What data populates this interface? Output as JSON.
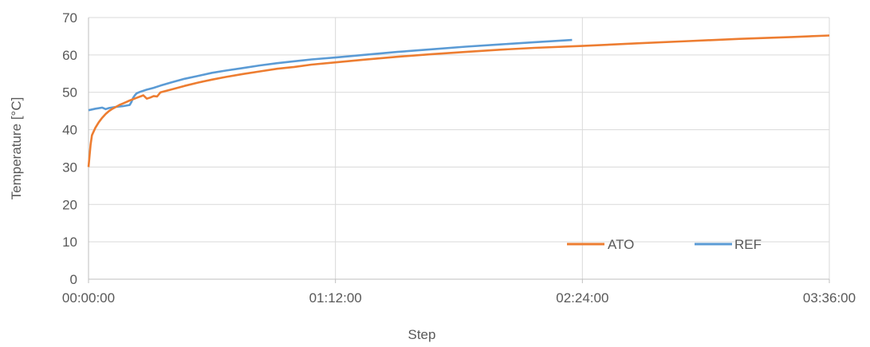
{
  "chart_data": {
    "type": "line",
    "title": "",
    "xlabel": "Step",
    "ylabel": "Temperature [°C]",
    "x_unit": "minutes",
    "xlim": [
      0,
      216
    ],
    "ylim": [
      0,
      70
    ],
    "y_ticks": [
      0,
      10,
      20,
      30,
      40,
      50,
      60,
      70
    ],
    "x_ticks": [
      {
        "value": 0,
        "label": "00:00:00"
      },
      {
        "value": 72,
        "label": "01:12:00"
      },
      {
        "value": 144,
        "label": "02:24:00"
      },
      {
        "value": 216,
        "label": "03:36:00"
      }
    ],
    "grid": true,
    "legend_position": "bottom-right",
    "series": [
      {
        "name": "ATO",
        "color": "#ED7D31",
        "points": [
          [
            0,
            30
          ],
          [
            0.3,
            33
          ],
          [
            0.6,
            36
          ],
          [
            1,
            38.5
          ],
          [
            2,
            40.5
          ],
          [
            3,
            42
          ],
          [
            4,
            43.2
          ],
          [
            5,
            44.2
          ],
          [
            6,
            45
          ],
          [
            7,
            45.6
          ],
          [
            8,
            46.1
          ],
          [
            9,
            46.6
          ],
          [
            10,
            47
          ],
          [
            11,
            47.4
          ],
          [
            12,
            47.8
          ],
          [
            14,
            48.5
          ],
          [
            16,
            49.2
          ],
          [
            17,
            48.3
          ],
          [
            18,
            48.6
          ],
          [
            19,
            49.0
          ],
          [
            20,
            48.9
          ],
          [
            21,
            50.0
          ],
          [
            24,
            50.7
          ],
          [
            28,
            51.7
          ],
          [
            32,
            52.6
          ],
          [
            36,
            53.4
          ],
          [
            40,
            54.1
          ],
          [
            45,
            54.9
          ],
          [
            50,
            55.6
          ],
          [
            55,
            56.3
          ],
          [
            60,
            56.8
          ],
          [
            65,
            57.4
          ],
          [
            72,
            58.0
          ],
          [
            80,
            58.7
          ],
          [
            90,
            59.5
          ],
          [
            100,
            60.2
          ],
          [
            110,
            60.8
          ],
          [
            120,
            61.4
          ],
          [
            130,
            61.9
          ],
          [
            144,
            62.4
          ],
          [
            160,
            63.1
          ],
          [
            175,
            63.7
          ],
          [
            190,
            64.3
          ],
          [
            205,
            64.8
          ],
          [
            216,
            65.2
          ]
        ]
      },
      {
        "name": "REF",
        "color": "#5B9BD5",
        "points": [
          [
            0,
            45.2
          ],
          [
            2,
            45.6
          ],
          [
            4,
            45.9
          ],
          [
            5,
            45.5
          ],
          [
            6,
            45.8
          ],
          [
            8,
            46.1
          ],
          [
            10,
            46.3
          ],
          [
            12,
            46.6
          ],
          [
            12.5,
            47.4
          ],
          [
            13,
            48.5
          ],
          [
            13.5,
            49.2
          ],
          [
            14,
            49.7
          ],
          [
            15,
            50.1
          ],
          [
            17,
            50.7
          ],
          [
            19,
            51.2
          ],
          [
            21,
            51.8
          ],
          [
            24,
            52.6
          ],
          [
            28,
            53.6
          ],
          [
            32,
            54.4
          ],
          [
            36,
            55.2
          ],
          [
            40,
            55.8
          ],
          [
            45,
            56.5
          ],
          [
            50,
            57.2
          ],
          [
            55,
            57.8
          ],
          [
            60,
            58.3
          ],
          [
            65,
            58.8
          ],
          [
            72,
            59.3
          ],
          [
            80,
            60.0
          ],
          [
            90,
            60.8
          ],
          [
            100,
            61.5
          ],
          [
            110,
            62.2
          ],
          [
            120,
            62.8
          ],
          [
            130,
            63.4
          ],
          [
            141,
            64.0
          ]
        ]
      }
    ]
  }
}
